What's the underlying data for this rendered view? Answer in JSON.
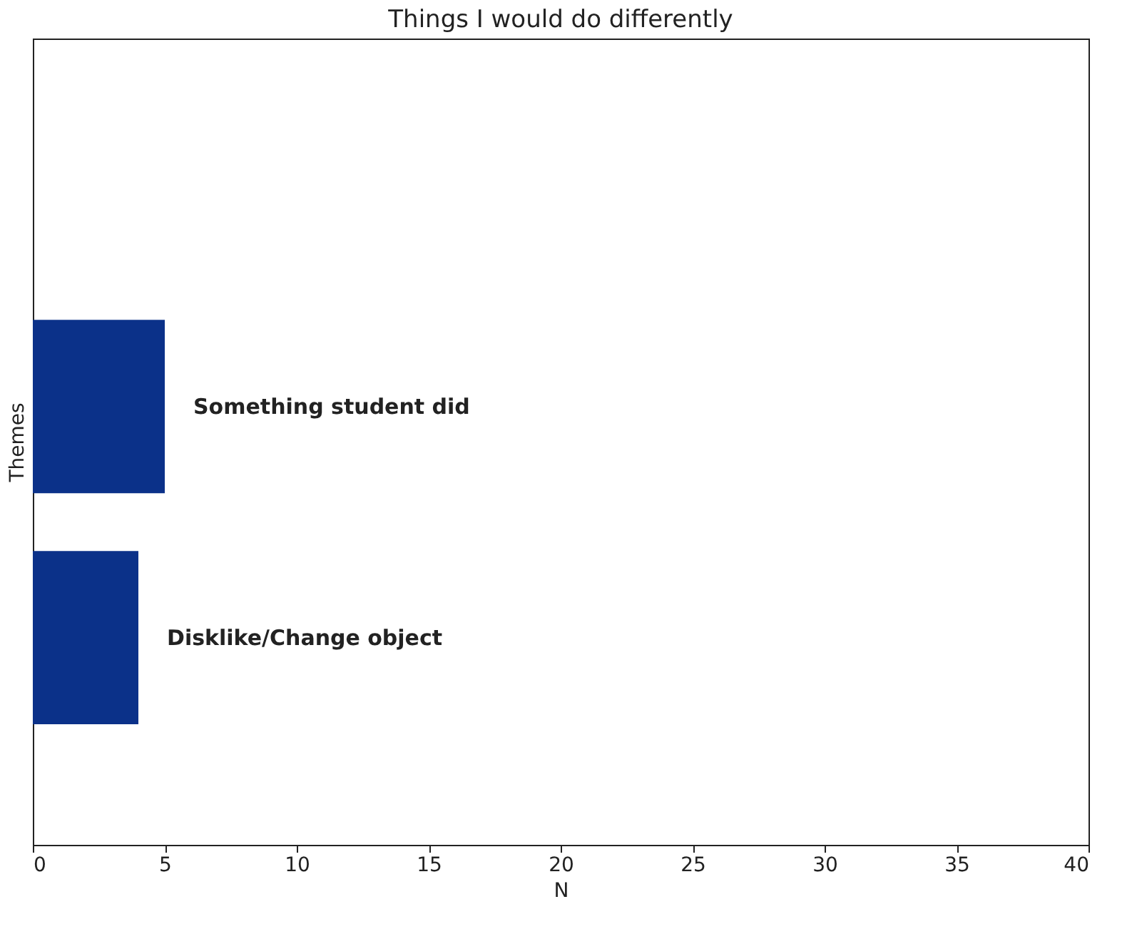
{
  "chart_data": {
    "type": "bar",
    "orientation": "horizontal",
    "title": "Things I would do differently",
    "xlabel": "N",
    "ylabel": "Themes",
    "categories": [
      "Something student did",
      "Disklike/Change object"
    ],
    "values": [
      5,
      4
    ],
    "color": "#0b3189",
    "xlim": [
      0,
      40
    ],
    "xticks": [
      0,
      5,
      10,
      15,
      20,
      25,
      30,
      35,
      40
    ],
    "grid": false,
    "tick_labels": "x"
  }
}
